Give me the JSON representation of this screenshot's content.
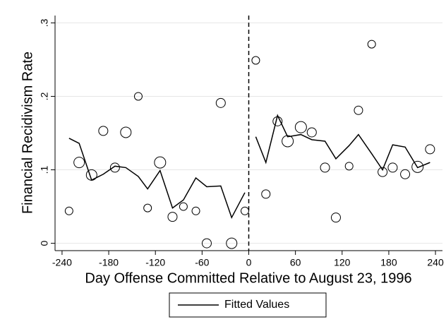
{
  "chart_data": {
    "type": "scatter",
    "y_label": "Financial Recidivism Rate",
    "x_label": "Day Offense Committed Relative to August 23, 1996",
    "xlim": [
      -249,
      249
    ],
    "ylim": [
      -0.01,
      0.31
    ],
    "xticks": [
      -240,
      -180,
      -120,
      -60,
      0,
      60,
      120,
      180,
      240
    ],
    "yticks": [
      {
        "value": 0,
        "label": "0"
      },
      {
        "value": 0.1,
        "label": ".1"
      },
      {
        "value": 0.2,
        "label": ".2"
      },
      {
        "value": 0.3,
        "label": ".3"
      }
    ],
    "grid": true,
    "xline": 0,
    "x": [
      -231,
      -218,
      -202,
      -187,
      -172,
      -158,
      -142,
      -130,
      -114,
      -98,
      -84,
      -68,
      -54,
      -36,
      -22,
      -5,
      9,
      22,
      37,
      50,
      67,
      81,
      98,
      112,
      129,
      141,
      158,
      172,
      185,
      201,
      217,
      233
    ],
    "values": [
      0.044,
      0.11,
      0.093,
      0.153,
      0.103,
      0.151,
      0.2,
      0.048,
      0.11,
      0.036,
      0.05,
      0.044,
      0.0,
      0.191,
      0.0,
      0.044,
      0.249,
      0.067,
      0.166,
      0.139,
      0.158,
      0.151,
      0.103,
      0.035,
      0.105,
      0.181,
      0.271,
      0.097,
      0.103,
      0.094,
      0.104,
      0.128
    ],
    "sizes": [
      5.5,
      7.5,
      7.5,
      6.5,
      6.5,
      7.5,
      5.5,
      5.5,
      8,
      6.5,
      5.5,
      5.5,
      6.5,
      6.5,
      7.5,
      5.5,
      5.5,
      6,
      6.5,
      8,
      8,
      6.5,
      6.5,
      6.5,
      5.5,
      6,
      5.5,
      6.5,
      6.5,
      6.5,
      8,
      6.5
    ],
    "fit": {
      "name": "Fitted Values",
      "color": "#000000",
      "segments": [
        {
          "x": [
            -231,
            -218,
            -202,
            -187,
            -172,
            -158,
            -142,
            -130,
            -114,
            -98,
            -84,
            -68,
            -54,
            -36,
            -22,
            -5
          ],
          "values": [
            0.143,
            0.136,
            0.086,
            0.094,
            0.105,
            0.103,
            0.091,
            0.074,
            0.099,
            0.048,
            0.059,
            0.089,
            0.077,
            0.078,
            0.035,
            0.069
          ]
        },
        {
          "x": [
            9,
            22,
            37,
            50,
            67,
            81,
            98,
            112,
            129,
            141,
            158,
            172,
            185,
            201,
            217,
            233
          ],
          "values": [
            0.145,
            0.11,
            0.174,
            0.145,
            0.148,
            0.141,
            0.139,
            0.115,
            0.133,
            0.148,
            0.122,
            0.1,
            0.134,
            0.131,
            0.103,
            0.11
          ]
        }
      ]
    }
  }
}
